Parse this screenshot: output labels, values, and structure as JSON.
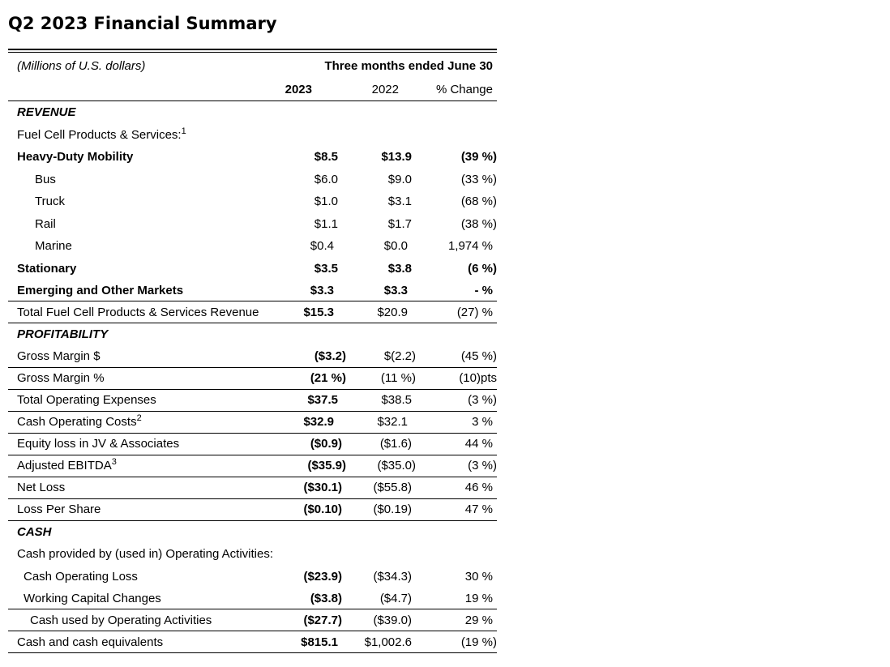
{
  "title": "Q2 2023 Financial Summary",
  "table": {
    "unit_label": "(Millions of U.S. dollars)",
    "period_header": "Three months ended June 30",
    "columns": [
      "2023",
      "2022",
      "% Change"
    ],
    "rows": [
      {
        "label": "REVENUE",
        "style": "section",
        "indent": 0,
        "sup": "",
        "cells": null,
        "rule": false
      },
      {
        "label": "Fuel Cell Products & Services:",
        "style": "normal",
        "indent": 0,
        "sup": "1",
        "cells": null,
        "rule": false
      },
      {
        "label": "Heavy-Duty Mobility",
        "style": "bold",
        "indent": 0,
        "sup": "",
        "cells": [
          {
            "t": "$8.5",
            "b": true
          },
          {
            "t": "$13.9",
            "b": true
          },
          {
            "t": "(39 %)",
            "b": true
          }
        ],
        "rule": false
      },
      {
        "label": "Bus",
        "style": "normal",
        "indent": 1,
        "sup": "",
        "cells": [
          {
            "t": "$6.0",
            "b": false
          },
          {
            "t": "$9.0",
            "b": false
          },
          {
            "t": "(33 %)",
            "b": false
          }
        ],
        "rule": false
      },
      {
        "label": "Truck",
        "style": "normal",
        "indent": 1,
        "sup": "",
        "cells": [
          {
            "t": "$1.0",
            "b": false
          },
          {
            "t": "$3.1",
            "b": false
          },
          {
            "t": "(68 %)",
            "b": false
          }
        ],
        "rule": false
      },
      {
        "label": "Rail",
        "style": "normal",
        "indent": 1,
        "sup": "",
        "cells": [
          {
            "t": "$1.1",
            "b": false
          },
          {
            "t": "$1.7",
            "b": false
          },
          {
            "t": "(38 %)",
            "b": false
          }
        ],
        "rule": false
      },
      {
        "label": "Marine",
        "style": "normal",
        "indent": 1,
        "sup": "",
        "cells": [
          {
            "t": "$0.4",
            "b": false
          },
          {
            "t": "$0.0",
            "b": false
          },
          {
            "t": "1,974 %",
            "b": false
          }
        ],
        "rule": false
      },
      {
        "label": "Stationary",
        "style": "bold",
        "indent": 0,
        "sup": "",
        "cells": [
          {
            "t": "$3.5",
            "b": true
          },
          {
            "t": "$3.8",
            "b": true
          },
          {
            "t": "(6 %)",
            "b": true
          }
        ],
        "rule": false
      },
      {
        "label": "Emerging and Other Markets",
        "style": "bold",
        "indent": 0,
        "sup": "",
        "cells": [
          {
            "t": "$3.3",
            "b": true
          },
          {
            "t": "$3.3",
            "b": true
          },
          {
            "t": "- %",
            "b": true
          }
        ],
        "rule": true
      },
      {
        "label": "Total Fuel Cell Products & Services Revenue",
        "style": "normal",
        "indent": 0,
        "sup": "",
        "cells": [
          {
            "t": "$15.3",
            "b": true
          },
          {
            "t": "$20.9",
            "b": false
          },
          {
            "t": "(27) %",
            "b": false
          }
        ],
        "rule": true
      },
      {
        "label": "PROFITABILITY",
        "style": "section",
        "indent": 0,
        "sup": "",
        "cells": null,
        "rule": false
      },
      {
        "label": "Gross Margin $",
        "style": "normal",
        "indent": 0,
        "sup": "",
        "cells": [
          {
            "t": "($3.2)",
            "b": true
          },
          {
            "t": "$(2.2)",
            "b": false
          },
          {
            "t": "(45 %)",
            "b": false
          }
        ],
        "rule": true
      },
      {
        "label": "Gross Margin %",
        "style": "normal",
        "indent": 0,
        "sup": "",
        "cells": [
          {
            "t": "(21 %)",
            "b": true
          },
          {
            "t": "(11 %)",
            "b": false
          },
          {
            "t": "(10)pts",
            "b": false
          }
        ],
        "rule": true
      },
      {
        "label": "Total Operating Expenses",
        "style": "normal",
        "indent": 0,
        "sup": "",
        "cells": [
          {
            "t": "$37.5",
            "b": true
          },
          {
            "t": "$38.5",
            "b": false
          },
          {
            "t": "(3 %)",
            "b": false
          }
        ],
        "rule": true
      },
      {
        "label": "Cash Operating Costs",
        "style": "normal",
        "indent": 0,
        "sup": "2",
        "cells": [
          {
            "t": "$32.9",
            "b": true
          },
          {
            "t": "$32.1",
            "b": false
          },
          {
            "t": "3 %",
            "b": false
          }
        ],
        "rule": true
      },
      {
        "label": "Equity loss in JV & Associates",
        "style": "normal",
        "indent": 0,
        "sup": "",
        "cells": [
          {
            "t": "($0.9)",
            "b": true
          },
          {
            "t": "($1.6)",
            "b": false
          },
          {
            "t": "44 %",
            "b": false
          }
        ],
        "rule": true
      },
      {
        "label": "Adjusted EBITDA",
        "style": "normal",
        "indent": 0,
        "sup": "3",
        "cells": [
          {
            "t": "($35.9)",
            "b": true
          },
          {
            "t": "($35.0)",
            "b": false
          },
          {
            "t": "(3 %)",
            "b": false
          }
        ],
        "rule": true
      },
      {
        "label": "Net Loss",
        "style": "normal",
        "indent": 0,
        "sup": "",
        "cells": [
          {
            "t": "($30.1)",
            "b": true
          },
          {
            "t": "($55.8)",
            "b": false
          },
          {
            "t": "46 %",
            "b": false
          }
        ],
        "rule": true
      },
      {
        "label": "Loss Per Share",
        "style": "normal",
        "indent": 0,
        "sup": "",
        "cells": [
          {
            "t": "($0.10)",
            "b": true
          },
          {
            "t": "($0.19)",
            "b": false
          },
          {
            "t": "47 %",
            "b": false
          }
        ],
        "rule": true
      },
      {
        "label": "CASH",
        "style": "section",
        "indent": 0,
        "sup": "",
        "cells": null,
        "rule": false
      },
      {
        "label": "Cash provided by (used in) Operating Activities:",
        "style": "normal",
        "indent": 0,
        "sup": "",
        "cells": null,
        "rule": false
      },
      {
        "label": "Cash Operating Loss",
        "style": "normal",
        "indent": 2,
        "sup": "",
        "cells": [
          {
            "t": "($23.9)",
            "b": true
          },
          {
            "t": "($34.3)",
            "b": false
          },
          {
            "t": "30 %",
            "b": false
          }
        ],
        "rule": false
      },
      {
        "label": "Working Capital Changes",
        "style": "normal",
        "indent": 2,
        "sup": "",
        "cells": [
          {
            "t": "($3.8)",
            "b": true
          },
          {
            "t": "($4.7)",
            "b": false
          },
          {
            "t": "19 %",
            "b": false
          }
        ],
        "rule": true
      },
      {
        "label": "Cash used by Operating Activities",
        "style": "normal",
        "indent": 3,
        "sup": "",
        "cells": [
          {
            "t": "($27.7)",
            "b": true
          },
          {
            "t": "($39.0)",
            "b": false
          },
          {
            "t": "29 %",
            "b": false
          }
        ],
        "rule": true
      },
      {
        "label": "Cash and cash equivalents",
        "style": "normal",
        "indent": 0,
        "sup": "",
        "cells": [
          {
            "t": "$815.1",
            "b": true
          },
          {
            "t": "$1,002.6",
            "b": false
          },
          {
            "t": "(19 %)",
            "b": false
          }
        ],
        "rule": true
      }
    ]
  }
}
